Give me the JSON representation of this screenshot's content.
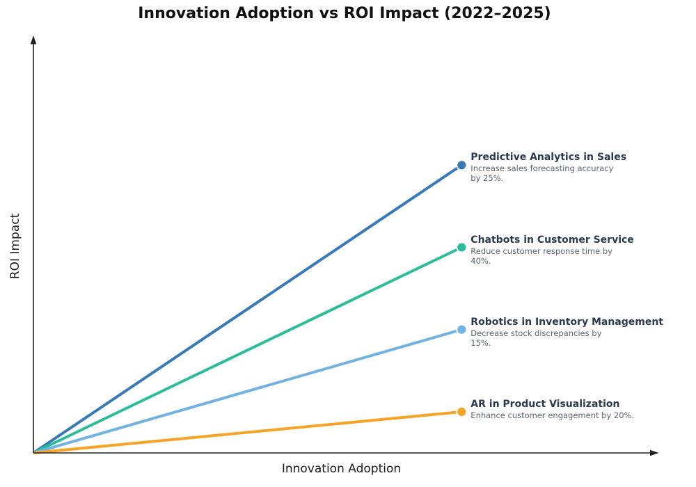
{
  "title": "Innovation Adoption vs ROI Impact (2022–2025)",
  "chart_data": {
    "type": "line",
    "title": "Innovation Adoption vs ROI Impact (2022–2025)",
    "xlabel": "Innovation Adoption",
    "ylabel": "ROI Impact",
    "xlim": [
      0,
      1
    ],
    "ylim": [
      0,
      1
    ],
    "ticks": "none",
    "grid": false,
    "legend": "none",
    "annotations": "series name and description at end of each line",
    "series": [
      {
        "name": "Predictive Analytics in Sales",
        "description": "Increase sales forecasting accuracy\nby 25%.",
        "color": "#3879b8",
        "points": [
          [
            0,
            0
          ],
          [
            0.7,
            0.7
          ]
        ]
      },
      {
        "name": "Chatbots in Customer Service",
        "description": "Reduce customer response time by\n40%.",
        "color": "#2cbd98",
        "points": [
          [
            0,
            0
          ],
          [
            0.7,
            0.5
          ]
        ]
      },
      {
        "name": "Robotics in Inventory Management",
        "description": "Decrease stock discrepancies by\n15%.",
        "color": "#72b2e2",
        "points": [
          [
            0,
            0
          ],
          [
            0.7,
            0.3
          ]
        ]
      },
      {
        "name": "AR in Product Visualization",
        "description": "Enhance customer engagement by 20%.",
        "color": "#f5a425",
        "points": [
          [
            0,
            0
          ],
          [
            0.7,
            0.1
          ]
        ]
      }
    ],
    "colors": {
      "axis": "#222222",
      "title": "#111111",
      "series_name_text": "#2b3a4f",
      "series_desc_text": "#5a6370"
    }
  }
}
